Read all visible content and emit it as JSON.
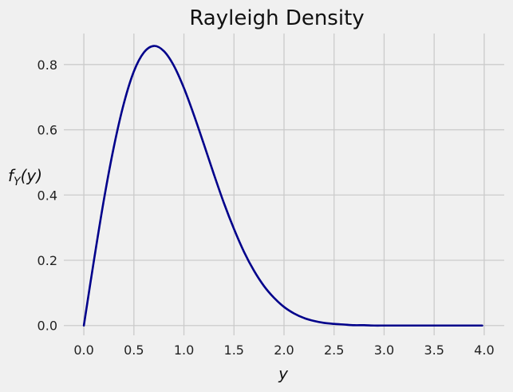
{
  "chart_data": {
    "type": "line",
    "title": "Rayleigh Density",
    "xlabel": "y",
    "ylabel_main": "f",
    "ylabel_sub": "Y",
    "ylabel_arg": "(y)",
    "xlim": [
      -0.2,
      4.2
    ],
    "ylim": [
      -0.03,
      0.895
    ],
    "x_ticks": [
      0.0,
      0.5,
      1.0,
      1.5,
      2.0,
      2.5,
      3.0,
      3.5,
      4.0
    ],
    "y_ticks": [
      0.0,
      0.2,
      0.4,
      0.6,
      0.8
    ],
    "x_tick_labels": [
      "0.0",
      "0.5",
      "1.0",
      "1.5",
      "2.0",
      "2.5",
      "3.0",
      "3.5",
      "4.0"
    ],
    "y_tick_labels": [
      "0.0",
      "0.2",
      "0.4",
      "0.6",
      "0.8"
    ],
    "grid": true,
    "series": [
      {
        "color": "#00008b",
        "x": [
          0.0,
          0.1,
          0.2,
          0.3,
          0.4,
          0.5,
          0.6,
          0.7,
          0.8,
          0.9,
          1.0,
          1.1,
          1.2,
          1.3,
          1.4,
          1.5,
          1.6,
          1.7,
          1.8,
          1.9,
          2.0,
          2.1,
          2.2,
          2.3,
          2.4,
          2.5,
          2.6,
          2.7,
          2.8,
          2.9,
          3.0,
          3.1,
          3.2,
          3.3,
          3.4,
          3.5,
          3.6,
          3.7,
          3.8,
          3.9,
          3.98
        ],
        "y": [
          0.0,
          0.198,
          0.385,
          0.548,
          0.681,
          0.779,
          0.837,
          0.857,
          0.841,
          0.796,
          0.728,
          0.645,
          0.555,
          0.463,
          0.375,
          0.296,
          0.226,
          0.168,
          0.121,
          0.085,
          0.057,
          0.037,
          0.023,
          0.014,
          0.008,
          0.005,
          0.003,
          0.001,
          0.001,
          0.0,
          0.0,
          0.0,
          0.0,
          0.0,
          0.0,
          0.0,
          0.0,
          0.0,
          0.0,
          0.0,
          0.0
        ]
      }
    ]
  }
}
